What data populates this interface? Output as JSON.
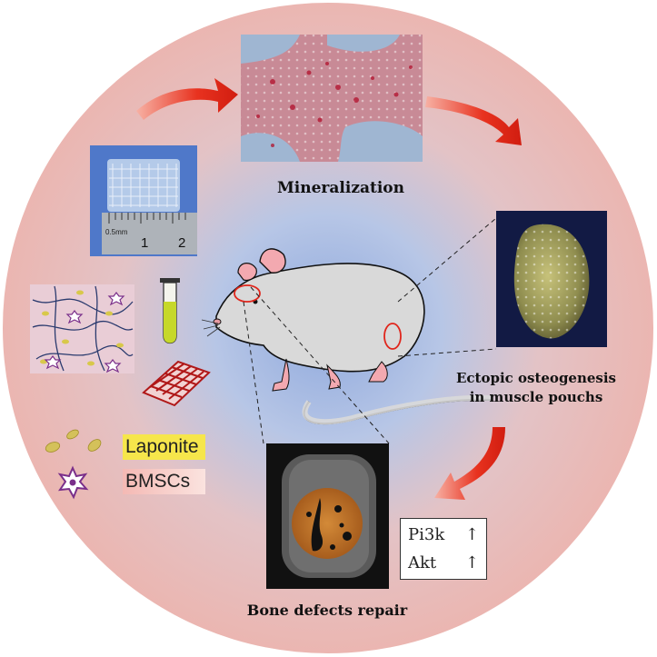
{
  "labels": {
    "mineralization": "Mineralization",
    "ectopic_line1": "Ectopic osteogenesis",
    "ectopic_line2": "in muscle pouchs",
    "bone_repair": "Bone defects repair"
  },
  "legend": {
    "laponite": "Laponite",
    "bmscs": "BMSCs"
  },
  "ruler": {
    "unit": "0.5mm",
    "tick_1": "1",
    "tick_2": "2"
  },
  "markers": [
    {
      "name": "Pi3k",
      "trend": "↑"
    },
    {
      "name": "Akt",
      "trend": "↑"
    }
  ],
  "colors": {
    "circle_outer": "#e9b7b3",
    "circle_center": "#8ea8dc",
    "arrow_red": "#e0261c",
    "mouse_fill": "#d9d9d9",
    "laponite_yellow": "#f6e64b",
    "bmscs_pink": "#f6c9c2",
    "bmscs_star": "#7a2f8a"
  }
}
